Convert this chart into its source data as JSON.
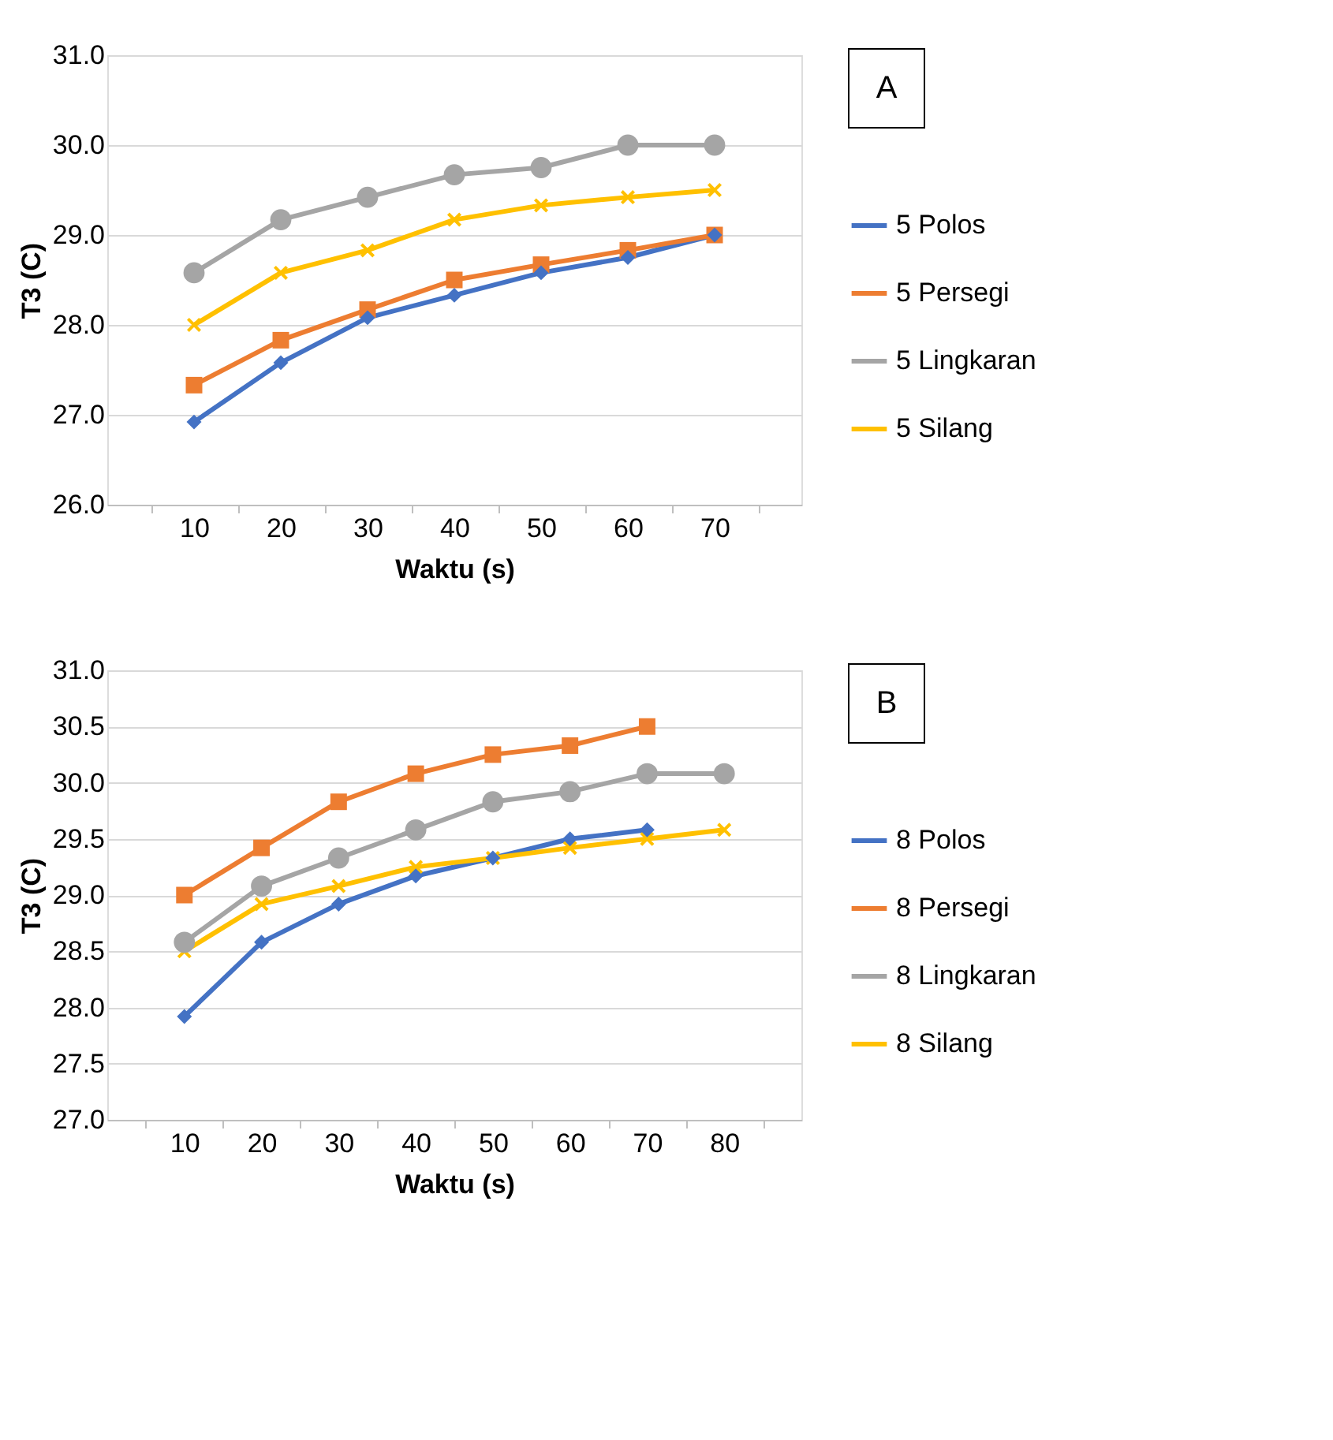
{
  "chart_data": [
    {
      "type": "line",
      "xlabel": "Waktu (s)",
      "ylabel": "T3 (C)",
      "categories": [
        "10",
        "20",
        "30",
        "40",
        "50",
        "60",
        "70"
      ],
      "ylim": [
        26,
        31
      ],
      "yticks": [
        {
          "value": 26,
          "label": "26.0"
        },
        {
          "value": 27,
          "label": "27.0"
        },
        {
          "value": 28,
          "label": "28.0"
        },
        {
          "value": 29,
          "label": "29.0"
        },
        {
          "value": 30,
          "label": "30.0"
        },
        {
          "value": 31,
          "label": "31.0"
        }
      ],
      "grid": "y",
      "legend": "right",
      "annotations": [
        "A"
      ],
      "series": [
        {
          "name": "5 Polos",
          "color": "#4472c4",
          "marker": "diamond",
          "values": [
            26.92,
            27.58,
            28.08,
            28.33,
            28.58,
            28.75,
            29.0
          ]
        },
        {
          "name": "5 Persegi",
          "color": "#ed7d31",
          "marker": "square",
          "values": [
            27.33,
            27.83,
            28.17,
            28.5,
            28.67,
            28.83,
            29.0
          ]
        },
        {
          "name": "5 Lingkaran",
          "color": "#a5a5a5",
          "marker": "circle",
          "values": [
            28.58,
            29.17,
            29.42,
            29.67,
            29.75,
            30.0,
            30.0
          ]
        },
        {
          "name": "5 Silang",
          "color": "#ffc000",
          "marker": "cross",
          "values": [
            28.0,
            28.58,
            28.83,
            29.17,
            29.33,
            29.42,
            29.5
          ]
        }
      ]
    },
    {
      "type": "line",
      "xlabel": "Waktu (s)",
      "ylabel": "T3 (C)",
      "categories": [
        "10",
        "20",
        "30",
        "40",
        "50",
        "60",
        "70",
        "80"
      ],
      "ylim": [
        27,
        31
      ],
      "yticks": [
        {
          "value": 27,
          "label": "27.0"
        },
        {
          "value": 27.5,
          "label": "27.5"
        },
        {
          "value": 28,
          "label": "28.0"
        },
        {
          "value": 28.5,
          "label": "28.5"
        },
        {
          "value": 29,
          "label": "29.0"
        },
        {
          "value": 29.5,
          "label": "29.5"
        },
        {
          "value": 30,
          "label": "30.0"
        },
        {
          "value": 30.5,
          "label": "30.5"
        },
        {
          "value": 31,
          "label": "31.0"
        }
      ],
      "grid": "y",
      "legend": "right",
      "annotations": [
        "B"
      ],
      "series": [
        {
          "name": "8 Polos",
          "color": "#4472c4",
          "marker": "diamond",
          "values": [
            27.92,
            28.58,
            28.92,
            29.17,
            29.33,
            29.5,
            29.58,
            null
          ]
        },
        {
          "name": "8 Persegi",
          "color": "#ed7d31",
          "marker": "square",
          "values": [
            29.0,
            29.42,
            29.83,
            30.08,
            30.25,
            30.33,
            30.5,
            null
          ]
        },
        {
          "name": "8 Lingkaran",
          "color": "#a5a5a5",
          "marker": "circle",
          "values": [
            28.58,
            29.08,
            29.33,
            29.58,
            29.83,
            29.92,
            30.08,
            30.08
          ]
        },
        {
          "name": "8 Silang",
          "color": "#ffc000",
          "marker": "cross",
          "values": [
            28.5,
            28.92,
            29.08,
            29.25,
            29.33,
            29.42,
            29.5,
            29.58
          ]
        }
      ]
    }
  ]
}
